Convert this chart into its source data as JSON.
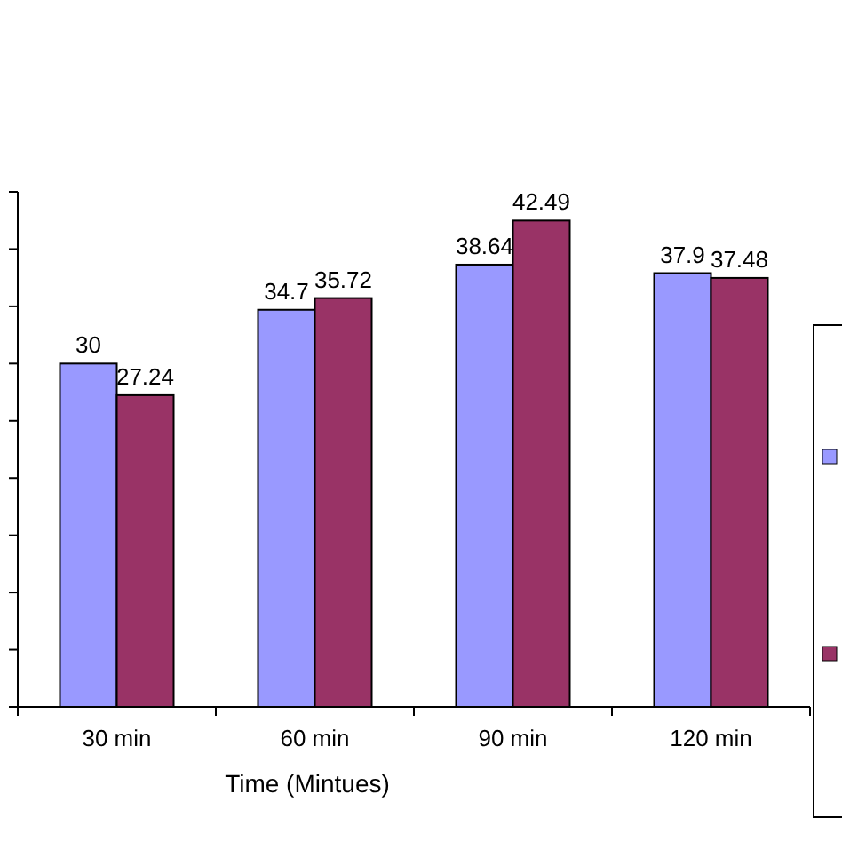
{
  "chart_data": {
    "type": "bar",
    "xlabel": "Time (Mintues)",
    "categories": [
      "30 min",
      "60 min",
      "90 min",
      "120 min"
    ],
    "series": [
      {
        "color": "#9999ff",
        "values": [
          30,
          34.7,
          38.64,
          37.9
        ]
      },
      {
        "color": "#993366",
        "values": [
          27.24,
          35.72,
          42.49,
          37.48
        ]
      }
    ],
    "ylim": [
      0,
      45
    ],
    "yticks": [
      {
        "value": 0,
        "label": null
      },
      {
        "value": 5,
        "label": null
      },
      {
        "value": 10,
        "label": null
      },
      {
        "value": 15,
        "label": null
      },
      {
        "value": 20,
        "label": null
      },
      {
        "value": 25,
        "label": null
      },
      {
        "value": 30,
        "label": null
      },
      {
        "value": 35,
        "label": null
      },
      {
        "value": 40,
        "label": null
      },
      {
        "value": 45,
        "label": null
      }
    ],
    "tick_labels": "x",
    "data_labels": true,
    "grid": false
  }
}
